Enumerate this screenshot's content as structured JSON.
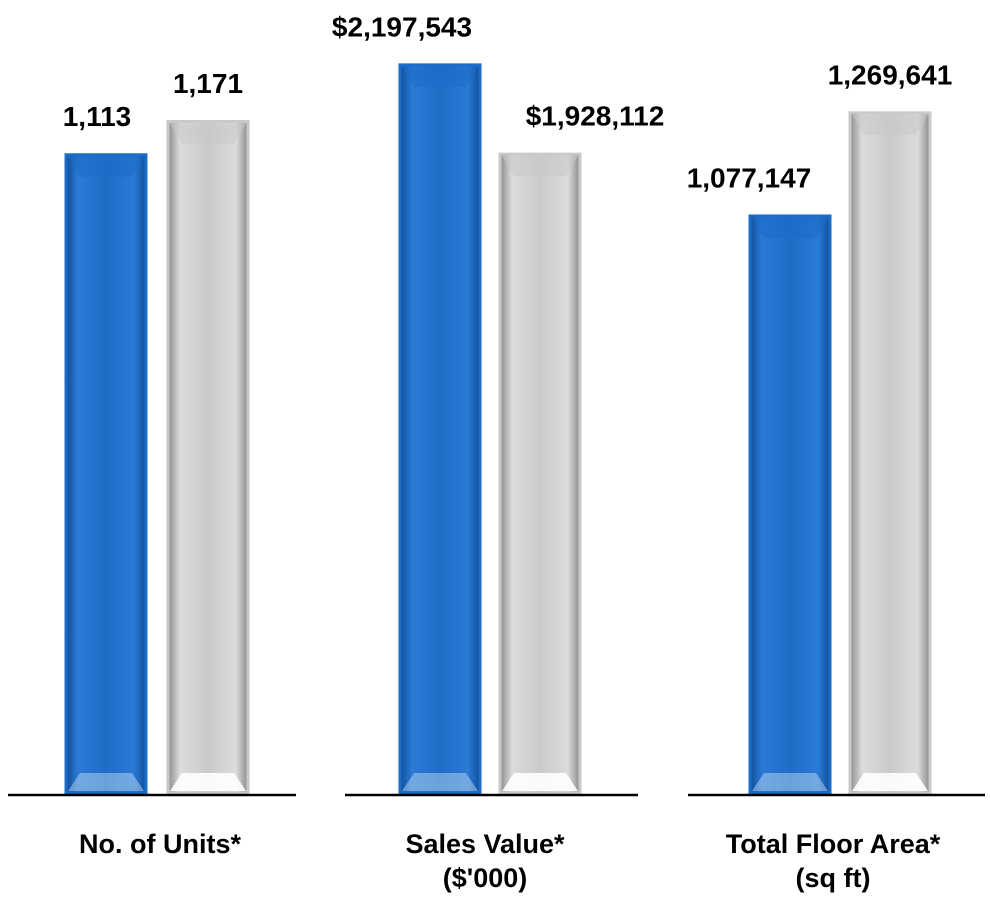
{
  "chart_data": [
    {
      "type": "bar",
      "title": "No. of Units*",
      "values": [
        1113,
        1171
      ],
      "value_labels": [
        "1,113",
        "1,171"
      ],
      "colors": [
        "#1b6cc6",
        "#c9c9c9"
      ],
      "ylim": [
        0,
        1348
      ]
    },
    {
      "type": "bar",
      "title": "Sales Value*",
      "subtitle": "($'000)",
      "values": [
        2197543,
        1928112
      ],
      "value_labels": [
        "$2,197,543",
        "$1,928,112"
      ],
      "colors": [
        "#1b6cc6",
        "#c9c9c9"
      ],
      "ylim": [
        0,
        2333000
      ]
    },
    {
      "type": "bar",
      "title": "Total Floor Area*",
      "subtitle": "(sq ft)",
      "values": [
        1077147,
        1269641
      ],
      "value_labels": [
        "1,077,147",
        "1,269,641"
      ],
      "colors": [
        "#1b6cc6",
        "#c9c9c9"
      ],
      "ylim": [
        0,
        1443000
      ]
    }
  ]
}
